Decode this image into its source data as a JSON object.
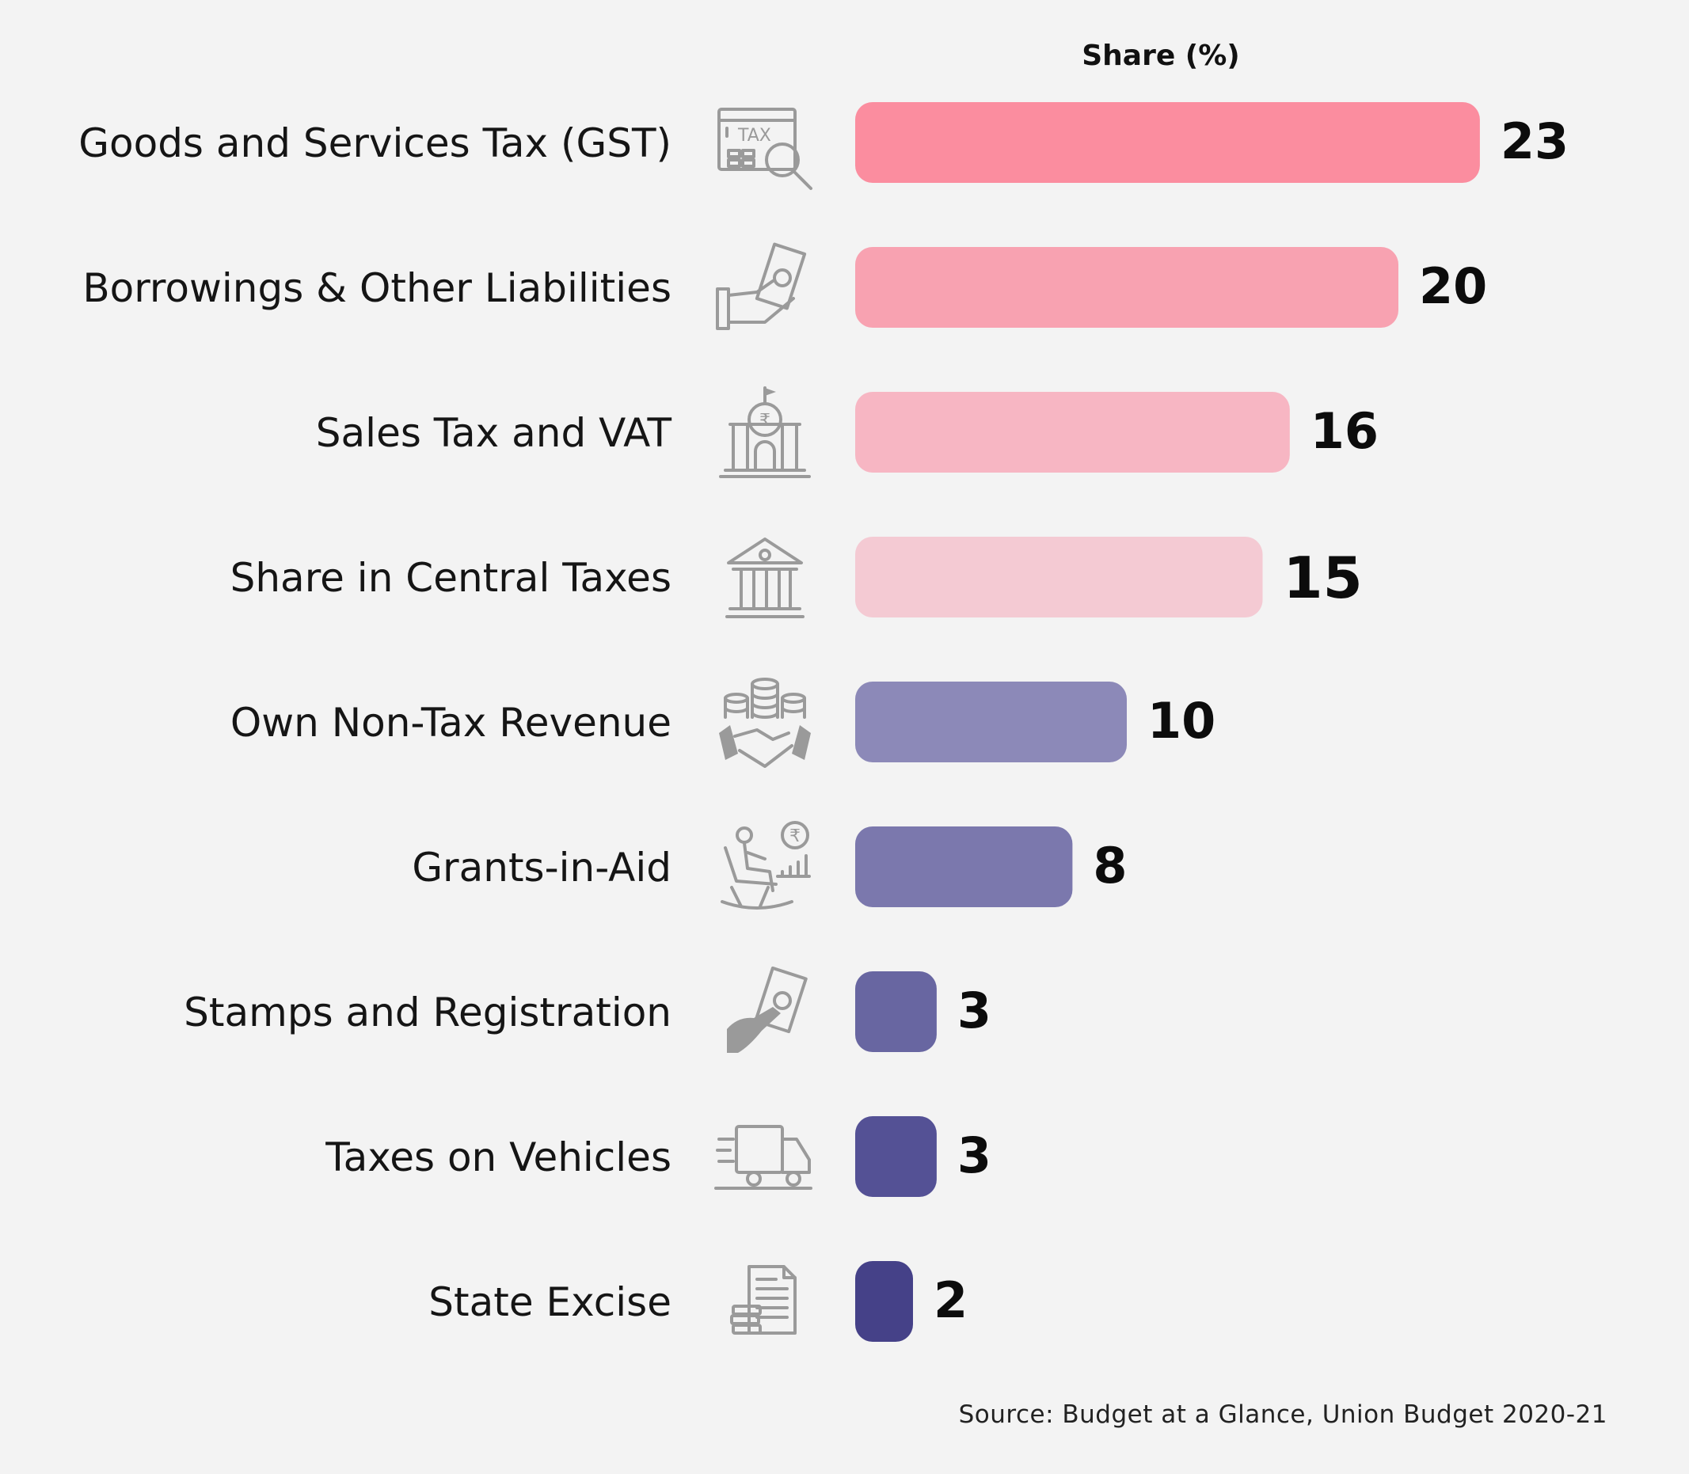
{
  "chart_data": {
    "type": "bar",
    "orientation": "horizontal",
    "title": "Share (%)",
    "categories": [
      "Goods and Services Tax (GST)",
      "Borrowings & Other Liabilities",
      "Sales Tax and VAT",
      "Share in Central Taxes",
      "Own Non-Tax Revenue",
      "Grants-in-Aid",
      "Stamps and Registration",
      "Taxes on Vehicles",
      "State Excise"
    ],
    "values": [
      23,
      20,
      16,
      15,
      10,
      8,
      3,
      3,
      2
    ],
    "icons": [
      "tax-magnifier-icon",
      "hand-cash-icon",
      "rupee-government-building-icon",
      "bank-building-icon",
      "coins-handshake-icon",
      "pensioner-rupee-icon",
      "hand-money-icon",
      "delivery-truck-icon",
      "documents-stack-icon"
    ],
    "colors": [
      "#fb8d9f",
      "#f8a2b1",
      "#f7b6c3",
      "#f4cad3",
      "#8c89b8",
      "#7b78ad",
      "#6866a1",
      "#545195",
      "#454188"
    ],
    "xlim": [
      0,
      23
    ],
    "grid": false,
    "legend": "none"
  },
  "source": "Source: Budget at a Glance, Union Budget 2020-21"
}
